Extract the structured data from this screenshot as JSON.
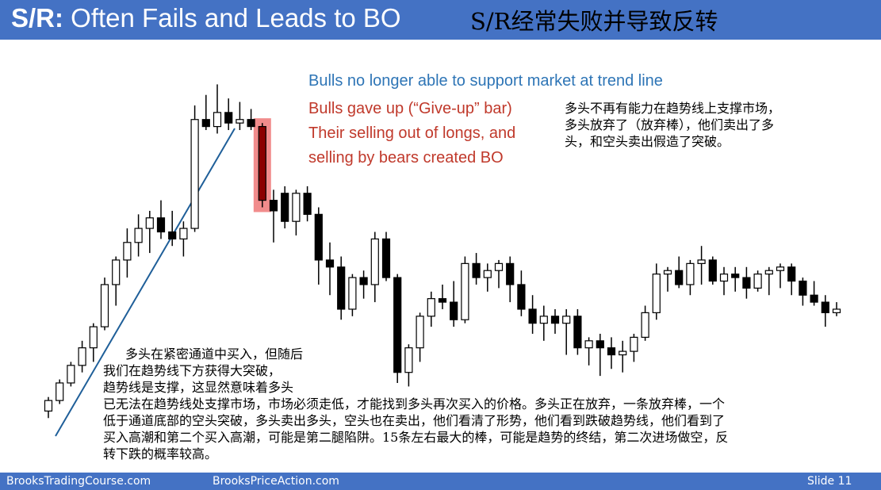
{
  "slide": {
    "title_prefix": "S/R:",
    "title_main": "Often Fails and Leads to BO",
    "title_cn": "S/R经常失败并导致反转",
    "notes": {
      "blue": "Bulls no longer able to support market at trend line",
      "red_line1": "Bulls gave up (“Give-up” bar)",
      "red_line2": "Their selling out of longs, and",
      "red_line3": "selling by bears created BO"
    },
    "cn_top_right": {
      "line1": "多头不再有能力在趋势线上支撑市场，",
      "line2": "多头放弃了（放弃棒），他们卖出了多",
      "line3": "头，和空头卖出假造了突破。"
    },
    "cn_bottom": {
      "line1": "多头在紧密通道中买入，但随后",
      "line2": "我们在趋势线下方获得大突破，",
      "line3": "趋势线是支撑，这显然意味着多头",
      "line4": "已无法在趋势线处支撑市场，市场必须走低，才能找到多头再次买入的价格。多头正在放弃，一条放弃棒，一个",
      "line5": "低于通道底部的空头突破，多头卖出多头，空头也在卖出，他们看清了形势，他们看到跌破趋势线，他们看到了",
      "line6": "买入高潮和第二个买入高潮，可能是第二腿陷阱。15条左右最大的棒，可能是趋势的终结，第二次进场做空，反",
      "line7": "转下跌的概率较高。"
    },
    "footer": {
      "left": "BrooksTradingCourse.com",
      "center": "BrooksPriceAction.com",
      "right": "Slide  11"
    },
    "colors": {
      "header_bg": "#4472c4",
      "blue_text": "#2e75b6",
      "red_text": "#c0392b",
      "highlight": "#f08080",
      "trend_line": "#1f5f99",
      "bear_body": "#000000",
      "bull_body": "#ffffff",
      "giveup_bar": "#8b0000"
    }
  },
  "chart_data": {
    "type": "candlestick",
    "description_note": "",
    "bars": [
      {
        "o": 6,
        "h": 10,
        "l": 4,
        "c": 9
      },
      {
        "o": 9,
        "h": 15,
        "l": 8,
        "c": 14
      },
      {
        "o": 14,
        "h": 20,
        "l": 13,
        "c": 19
      },
      {
        "o": 19,
        "h": 26,
        "l": 17,
        "c": 24
      },
      {
        "o": 24,
        "h": 31,
        "l": 20,
        "c": 30
      },
      {
        "o": 30,
        "h": 44,
        "l": 29,
        "c": 42
      },
      {
        "o": 42,
        "h": 50,
        "l": 36,
        "c": 49
      },
      {
        "o": 49,
        "h": 58,
        "l": 44,
        "c": 54
      },
      {
        "o": 54,
        "h": 62,
        "l": 50,
        "c": 58
      },
      {
        "o": 58,
        "h": 63,
        "l": 51,
        "c": 61
      },
      {
        "o": 61,
        "h": 66,
        "l": 55,
        "c": 57
      },
      {
        "o": 57,
        "h": 63,
        "l": 53,
        "c": 55
      },
      {
        "o": 55,
        "h": 60,
        "l": 50,
        "c": 58
      },
      {
        "o": 58,
        "h": 93,
        "l": 57,
        "c": 89
      },
      {
        "o": 89,
        "h": 96,
        "l": 86,
        "c": 87
      },
      {
        "o": 87,
        "h": 99,
        "l": 85,
        "c": 91
      },
      {
        "o": 91,
        "h": 95,
        "l": 86,
        "c": 88
      },
      {
        "o": 88,
        "h": 94,
        "l": 86,
        "c": 89
      },
      {
        "o": 89,
        "h": 92,
        "l": 86,
        "c": 87
      },
      {
        "o": 87,
        "h": 88,
        "l": 64,
        "c": 66
      },
      {
        "o": 66,
        "h": 69,
        "l": 54,
        "c": 63
      },
      {
        "o": 68,
        "h": 70,
        "l": 58,
        "c": 60
      },
      {
        "o": 60,
        "h": 69,
        "l": 56,
        "c": 68
      },
      {
        "o": 68,
        "h": 70,
        "l": 60,
        "c": 62
      },
      {
        "o": 62,
        "h": 64,
        "l": 42,
        "c": 49
      },
      {
        "o": 49,
        "h": 54,
        "l": 39,
        "c": 47
      },
      {
        "o": 47,
        "h": 50,
        "l": 32,
        "c": 35
      },
      {
        "o": 35,
        "h": 45,
        "l": 33,
        "c": 44
      },
      {
        "o": 44,
        "h": 46,
        "l": 38,
        "c": 42
      },
      {
        "o": 42,
        "h": 57,
        "l": 37,
        "c": 55
      },
      {
        "o": 55,
        "h": 57,
        "l": 43,
        "c": 44
      },
      {
        "o": 44,
        "h": 45,
        "l": 14,
        "c": 17
      },
      {
        "o": 17,
        "h": 25,
        "l": 13,
        "c": 24
      },
      {
        "o": 24,
        "h": 34,
        "l": 20,
        "c": 33
      },
      {
        "o": 33,
        "h": 40,
        "l": 30,
        "c": 38
      },
      {
        "o": 38,
        "h": 42,
        "l": 35,
        "c": 37
      },
      {
        "o": 37,
        "h": 43,
        "l": 30,
        "c": 32
      },
      {
        "o": 32,
        "h": 50,
        "l": 31,
        "c": 48
      },
      {
        "o": 48,
        "h": 51,
        "l": 42,
        "c": 44
      },
      {
        "o": 44,
        "h": 48,
        "l": 40,
        "c": 46
      },
      {
        "o": 46,
        "h": 49,
        "l": 41,
        "c": 48
      },
      {
        "o": 48,
        "h": 50,
        "l": 37,
        "c": 42
      },
      {
        "o": 42,
        "h": 46,
        "l": 33,
        "c": 35
      },
      {
        "o": 35,
        "h": 39,
        "l": 28,
        "c": 31
      },
      {
        "o": 31,
        "h": 36,
        "l": 26,
        "c": 33
      },
      {
        "o": 33,
        "h": 35,
        "l": 28,
        "c": 31
      },
      {
        "o": 31,
        "h": 35,
        "l": 22,
        "c": 33
      },
      {
        "o": 33,
        "h": 35,
        "l": 22,
        "c": 24
      },
      {
        "o": 24,
        "h": 27,
        "l": 19,
        "c": 26
      },
      {
        "o": 26,
        "h": 28,
        "l": 16,
        "c": 24
      },
      {
        "o": 24,
        "h": 27,
        "l": 18,
        "c": 22
      },
      {
        "o": 22,
        "h": 26,
        "l": 17,
        "c": 23
      },
      {
        "o": 23,
        "h": 28,
        "l": 20,
        "c": 27
      },
      {
        "o": 27,
        "h": 36,
        "l": 26,
        "c": 34
      },
      {
        "o": 34,
        "h": 48,
        "l": 32,
        "c": 45
      },
      {
        "o": 45,
        "h": 47,
        "l": 40,
        "c": 46
      },
      {
        "o": 46,
        "h": 50,
        "l": 41,
        "c": 42
      },
      {
        "o": 42,
        "h": 49,
        "l": 39,
        "c": 48
      },
      {
        "o": 48,
        "h": 53,
        "l": 42,
        "c": 49
      },
      {
        "o": 49,
        "h": 50,
        "l": 42,
        "c": 43
      },
      {
        "o": 43,
        "h": 47,
        "l": 39,
        "c": 45
      },
      {
        "o": 45,
        "h": 47,
        "l": 40,
        "c": 44
      },
      {
        "o": 44,
        "h": 47,
        "l": 38,
        "c": 41
      },
      {
        "o": 41,
        "h": 46,
        "l": 40,
        "c": 45
      },
      {
        "o": 45,
        "h": 47,
        "l": 39,
        "c": 46
      },
      {
        "o": 46,
        "h": 48,
        "l": 41,
        "c": 47
      },
      {
        "o": 47,
        "h": 48,
        "l": 39,
        "c": 43
      },
      {
        "o": 43,
        "h": 44,
        "l": 36,
        "c": 39
      },
      {
        "o": 39,
        "h": 43,
        "l": 36,
        "c": 37
      },
      {
        "o": 37,
        "h": 39,
        "l": 30,
        "c": 34
      },
      {
        "o": 34,
        "h": 37,
        "l": 33,
        "c": 35
      }
    ]
  }
}
